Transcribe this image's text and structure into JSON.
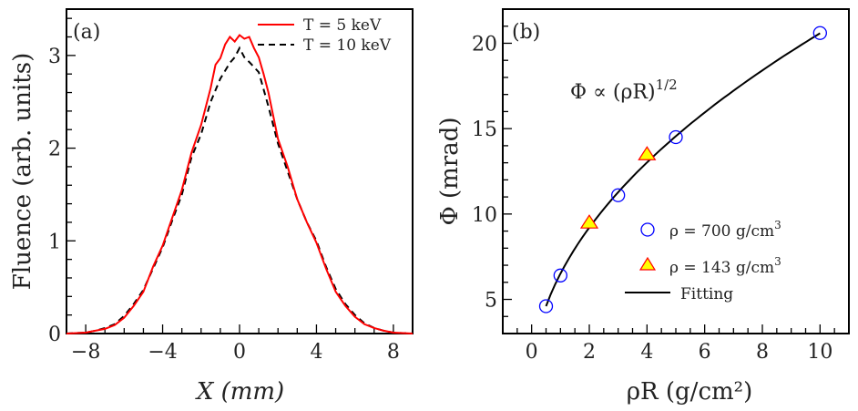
{
  "chart_data": [
    {
      "type": "line",
      "panel_label": "(a)",
      "xlabel": "X (mm)",
      "ylabel": "Fluence (arb. units)",
      "xlim": [
        -9,
        9
      ],
      "ylim": [
        0,
        3.5
      ],
      "xticks": [
        -8,
        -4,
        0,
        4,
        8
      ],
      "yticks": [
        0,
        1,
        2,
        3
      ],
      "grid": false,
      "legend_position": "top-right",
      "series": [
        {
          "name": "T = 5 keV",
          "color": "#ff0000",
          "dash": "solid",
          "x": [
            -9,
            -8.5,
            -8,
            -7.5,
            -7,
            -6.5,
            -6,
            -5.5,
            -5,
            -4.5,
            -4,
            -3.5,
            -3,
            -2.5,
            -2,
            -1.5,
            -1.25,
            -1,
            -0.75,
            -0.5,
            -0.25,
            0,
            0.25,
            0.5,
            0.75,
            1,
            1.25,
            1.5,
            2,
            2.5,
            3,
            3.5,
            4,
            4.5,
            5,
            5.5,
            6,
            6.5,
            7,
            7.5,
            8,
            8.5,
            9
          ],
          "y": [
            0,
            0.005,
            0.01,
            0.03,
            0.05,
            0.09,
            0.17,
            0.3,
            0.45,
            0.72,
            0.95,
            1.25,
            1.55,
            1.95,
            2.25,
            2.65,
            2.9,
            2.97,
            3.12,
            3.2,
            3.15,
            3.22,
            3.18,
            3.2,
            3.08,
            2.98,
            2.8,
            2.6,
            2.1,
            1.8,
            1.45,
            1.2,
            0.98,
            0.7,
            0.45,
            0.3,
            0.18,
            0.1,
            0.06,
            0.03,
            0.01,
            0.005,
            0
          ]
        },
        {
          "name": "T = 10 keV",
          "color": "#000000",
          "dash": "dashed",
          "x": [
            -9,
            -8.5,
            -8,
            -7.5,
            -7,
            -6.5,
            -6,
            -5.5,
            -5,
            -4.5,
            -4,
            -3.5,
            -3,
            -2.5,
            -2,
            -1.5,
            -1,
            -0.5,
            -0.25,
            0,
            0.25,
            0.5,
            1,
            1.5,
            2,
            2.5,
            3,
            3.5,
            4,
            4.5,
            5,
            5.5,
            6,
            6.5,
            7,
            7.5,
            8,
            8.5,
            9
          ],
          "y": [
            0,
            0.005,
            0.01,
            0.03,
            0.06,
            0.1,
            0.19,
            0.32,
            0.47,
            0.7,
            0.93,
            1.22,
            1.5,
            1.9,
            2.15,
            2.5,
            2.75,
            2.92,
            2.98,
            3.08,
            2.98,
            2.93,
            2.82,
            2.45,
            2.05,
            1.75,
            1.45,
            1.2,
            1.0,
            0.72,
            0.48,
            0.32,
            0.2,
            0.11,
            0.06,
            0.03,
            0.01,
            0.005,
            0
          ]
        }
      ]
    },
    {
      "type": "scatter",
      "panel_label": "(b)",
      "xlabel": "ρR (g/cm²)",
      "ylabel": "Φ (mrad)",
      "xlim": [
        -1,
        11
      ],
      "ylim": [
        3,
        22
      ],
      "xticks": [
        0,
        2,
        4,
        6,
        8,
        10
      ],
      "yticks": [
        5,
        10,
        15,
        20
      ],
      "grid": false,
      "legend_position": "bottom-right",
      "annotation": "Φ ∝ (ρR)",
      "annotation_exponent": "1/2",
      "series": [
        {
          "name": "ρ = 700 g/cm",
          "name_superscript": "3",
          "marker": "circle",
          "color": "#0000ff",
          "x": [
            0.5,
            1,
            3,
            5,
            10
          ],
          "y": [
            4.6,
            6.4,
            11.1,
            14.5,
            20.6
          ]
        },
        {
          "name": "ρ = 143 g/cm",
          "name_superscript": "3",
          "marker": "triangle",
          "color": "#ff0000",
          "fill": "#ffff00",
          "x": [
            2,
            4
          ],
          "y": [
            9.5,
            13.5
          ]
        },
        {
          "name": "Fitting",
          "marker": "line",
          "color": "#000000",
          "fit": "Φ = 6.51·(ρR)^0.5",
          "x": [
            0.5,
            10
          ]
        }
      ]
    }
  ]
}
